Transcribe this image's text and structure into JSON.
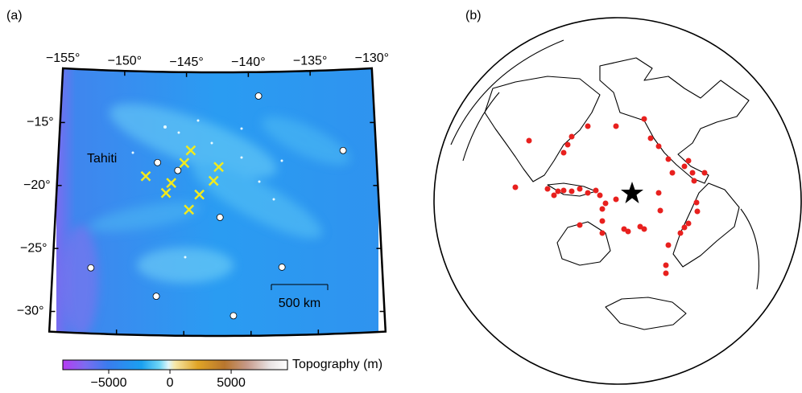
{
  "panel_a": {
    "label": "(a)",
    "xlim": [
      -155,
      -130
    ],
    "ylim": [
      -10.7,
      -31.6
    ],
    "xticks": [
      {
        "value": -155,
        "label": "−155°"
      },
      {
        "value": -150,
        "label": "−150°"
      },
      {
        "value": -145,
        "label": "−145°"
      },
      {
        "value": -140,
        "label": "−140°"
      },
      {
        "value": -135,
        "label": "−135°"
      },
      {
        "value": -130,
        "label": "−130°"
      }
    ],
    "yticks": [
      {
        "value": -15,
        "label": "−15°"
      },
      {
        "value": -20,
        "label": "−20°"
      },
      {
        "value": -25,
        "label": "−25°"
      },
      {
        "value": -30,
        "label": "−30°"
      }
    ],
    "place_label": "Tahiti",
    "scale_bar": "500 km",
    "stations": {
      "color": "#ffffff",
      "lon": [
        -139.2,
        -132.6,
        -147.2,
        -145.6,
        -142.3,
        -152.1,
        -137.6,
        -147.1,
        -141.3
      ],
      "lat": [
        -12.6,
        -17.1,
        -17.9,
        -18.5,
        -22.2,
        -26.4,
        -26.2,
        -28.5,
        -30.0
      ]
    },
    "sites": {
      "color": "#f2ea1c",
      "lon": [
        -144.6,
        -145.1,
        -148.1,
        -146.1,
        -142.4,
        -142.8,
        -146.5,
        -143.9,
        -144.7
      ],
      "lat": [
        -16.9,
        -17.9,
        -19.0,
        -19.5,
        -18.2,
        -19.3,
        -20.3,
        -20.4,
        -21.6
      ]
    },
    "colorbar": {
      "title": "Topography (m)",
      "lim": [
        -8750,
        9600
      ],
      "ticks": [
        {
          "value": -5000,
          "label": "−5000"
        },
        0,
        5000
      ]
    }
  },
  "panel_b": {
    "label": "(b)"
  }
}
